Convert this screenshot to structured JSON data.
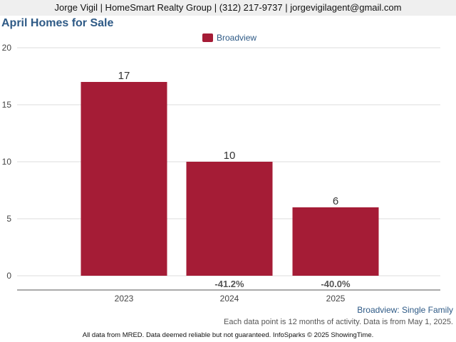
{
  "header": {
    "contact_line": "Jorge Vigil | HomeSmart Realty Group | (312) 217-9737 | jorgevigilagent@gmail.com"
  },
  "chart_data": {
    "type": "bar",
    "title": "April Homes for Sale",
    "categories": [
      "2023",
      "2024",
      "2025"
    ],
    "series": [
      {
        "name": "Broadview",
        "color": "#a51c36",
        "values": [
          17,
          10,
          6
        ],
        "changes": [
          "",
          "-41.2%",
          "-40.0%"
        ]
      }
    ],
    "ylim": [
      0,
      20
    ],
    "yticks": [
      0,
      5,
      10,
      15,
      20
    ],
    "grid": true,
    "legend_position": "top-center"
  },
  "footer": {
    "area_label": "Broadview: Single Family",
    "data_note": "Each data point is 12 months of activity. Data is from May 1, 2025.",
    "disclaimer": "All data from MRED. Data deemed reliable but not guaranteed. InfoSparks © 2025 ShowingTime."
  }
}
